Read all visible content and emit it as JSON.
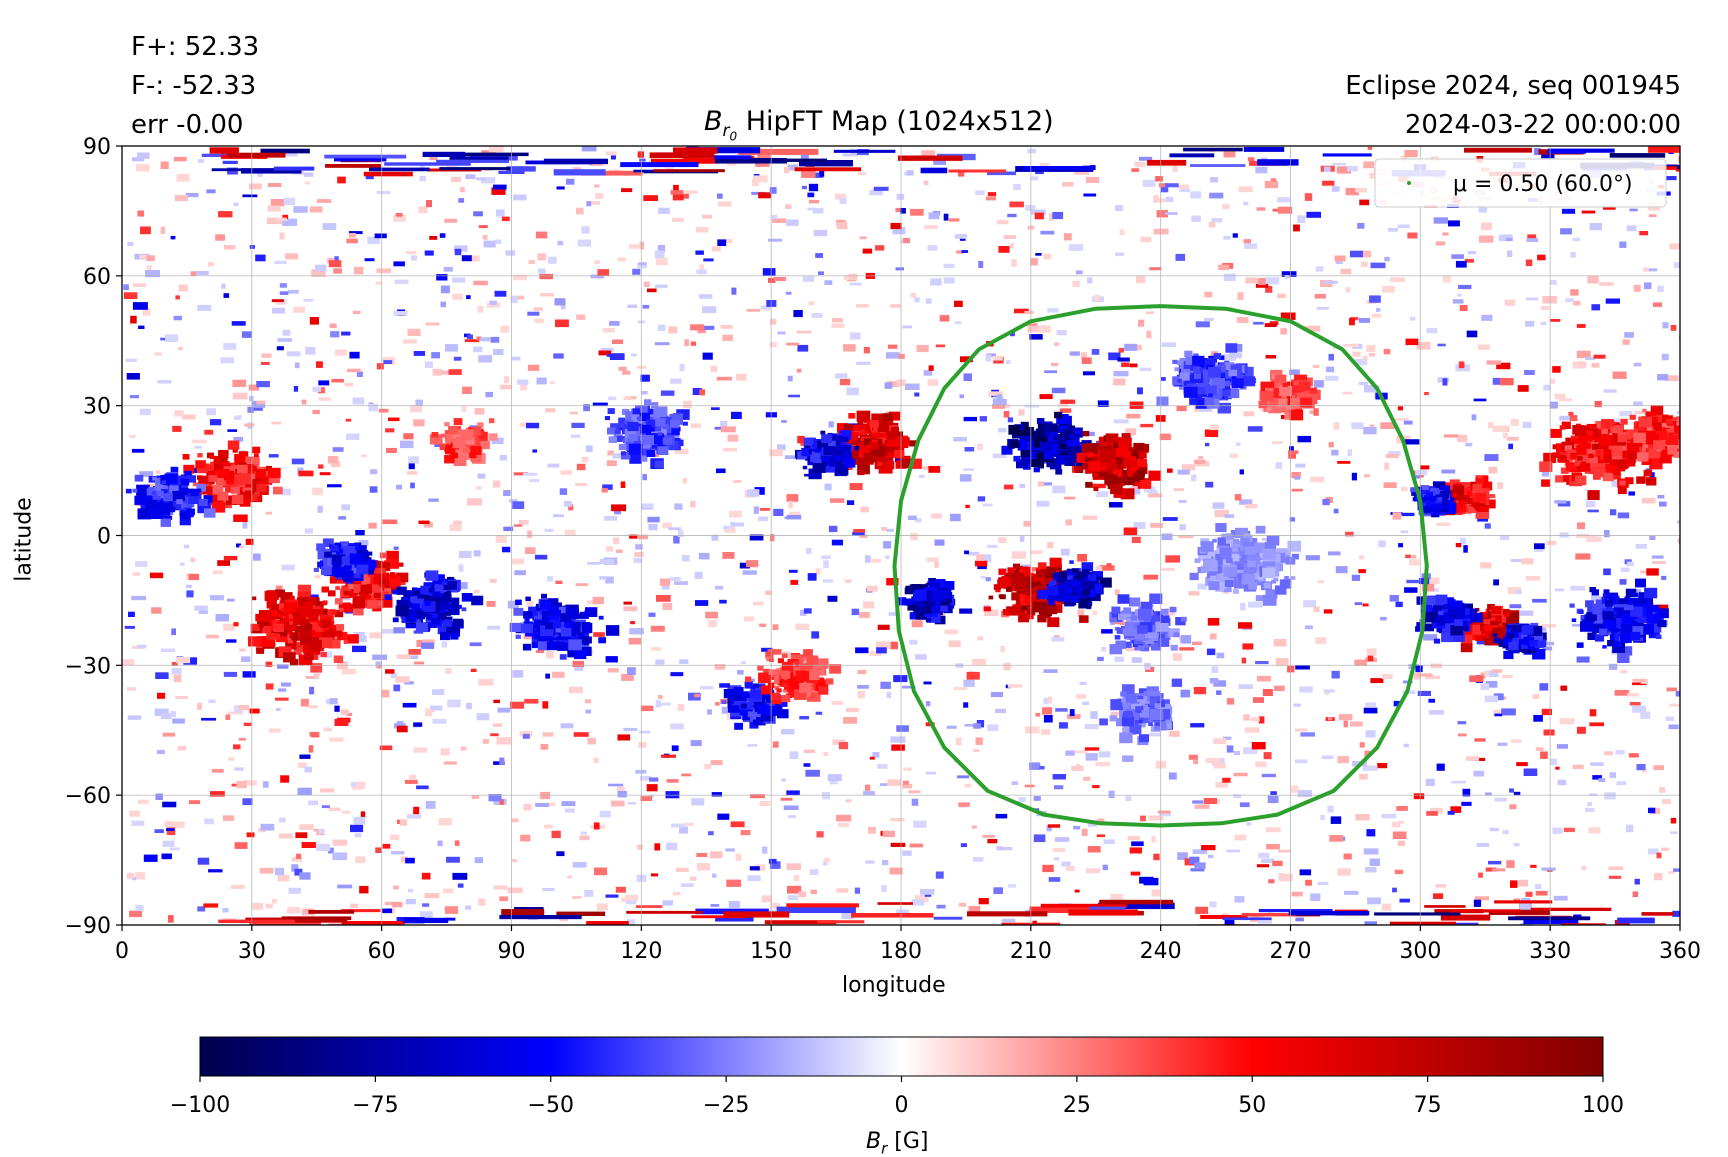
{
  "header": {
    "flux_pos": "F+: 52.33",
    "flux_neg": "F-: -52.33",
    "error": "err -0.00",
    "source": "Eclipse 2024, seq 001945",
    "date": "2024-03-22 00:00:00"
  },
  "chart_data": {
    "type": "heatmap",
    "title_prefix": "B",
    "title_sub": "r",
    "title_subsub": "0",
    "title_rest": " HipFT Map (1024x512)",
    "xlabel": "longitude",
    "ylabel": "latitude",
    "xlim": [
      0,
      360
    ],
    "ylim": [
      -90,
      90
    ],
    "xticks": [
      0,
      30,
      60,
      90,
      120,
      150,
      180,
      210,
      240,
      270,
      300,
      330,
      360
    ],
    "yticks": [
      -90,
      -60,
      -30,
      0,
      30,
      60,
      90
    ],
    "grid": true,
    "legend": {
      "placement": "upper right",
      "label": "μ = 0.50 (60.0°)",
      "color": "#2ca02c"
    },
    "mu_contour": {
      "mu": 0.5,
      "angle_deg": 60.0,
      "center_lon": 240,
      "center_lat": -7,
      "color": "#2ca02c",
      "points": [
        [
          240,
          53
        ],
        [
          255,
          52.4
        ],
        [
          270,
          49.5
        ],
        [
          282,
          43
        ],
        [
          290,
          34
        ],
        [
          296,
          22
        ],
        [
          300,
          8
        ],
        [
          301.5,
          -7
        ],
        [
          300.5,
          -22
        ],
        [
          297,
          -36
        ],
        [
          290,
          -49
        ],
        [
          280,
          -59
        ],
        [
          267,
          -64.5
        ],
        [
          254,
          -66.5
        ],
        [
          240,
          -67
        ],
        [
          226,
          -66.5
        ],
        [
          213,
          -64.5
        ],
        [
          200,
          -59
        ],
        [
          190,
          -49
        ],
        [
          183,
          -36
        ],
        [
          179.5,
          -22
        ],
        [
          178.5,
          -7
        ],
        [
          180,
          8
        ],
        [
          184,
          22
        ],
        [
          190,
          34
        ],
        [
          198,
          43
        ],
        [
          210,
          49.5
        ],
        [
          225,
          52.4
        ],
        [
          240,
          53
        ]
      ]
    },
    "active_regions": [
      {
        "lon": 213,
        "lat": 22,
        "sign": -1,
        "strength": 1.0,
        "r": 6
      },
      {
        "lon": 228,
        "lat": 18,
        "sign": 1,
        "strength": 1.0,
        "r": 6
      },
      {
        "lon": 210,
        "lat": -12,
        "sign": 1,
        "strength": 1.0,
        "r": 6
      },
      {
        "lon": 219,
        "lat": -11,
        "sign": -1,
        "strength": 0.9,
        "r": 4
      },
      {
        "lon": 185,
        "lat": -14,
        "sign": -1,
        "strength": 0.9,
        "r": 4
      },
      {
        "lon": 172,
        "lat": 22,
        "sign": 1,
        "strength": 0.9,
        "r": 6
      },
      {
        "lon": 162,
        "lat": 20,
        "sign": -1,
        "strength": 0.8,
        "r": 4
      },
      {
        "lon": 40,
        "lat": -20,
        "sign": 1,
        "strength": 0.8,
        "r": 8
      },
      {
        "lon": 55,
        "lat": -10,
        "sign": 1,
        "strength": 0.7,
        "r": 6
      },
      {
        "lon": 70,
        "lat": -15,
        "sign": -1,
        "strength": 0.8,
        "r": 6
      },
      {
        "lon": 50,
        "lat": -5,
        "sign": -1,
        "strength": 0.7,
        "r": 4
      },
      {
        "lon": 100,
        "lat": -20,
        "sign": -1,
        "strength": 0.7,
        "r": 6
      },
      {
        "lon": 25,
        "lat": 14,
        "sign": 1,
        "strength": 0.7,
        "r": 6
      },
      {
        "lon": 10,
        "lat": 10,
        "sign": -1,
        "strength": 0.6,
        "r": 5
      },
      {
        "lon": 145,
        "lat": -38,
        "sign": -1,
        "strength": 0.7,
        "r": 4
      },
      {
        "lon": 155,
        "lat": -32,
        "sign": 1,
        "strength": 0.5,
        "r": 5
      },
      {
        "lon": 310,
        "lat": 10,
        "sign": 1,
        "strength": 0.8,
        "r": 4
      },
      {
        "lon": 302,
        "lat": 9,
        "sign": -1,
        "strength": 0.7,
        "r": 3
      },
      {
        "lon": 315,
        "lat": -20,
        "sign": 1,
        "strength": 0.9,
        "r": 4
      },
      {
        "lon": 322,
        "lat": -23,
        "sign": -1,
        "strength": 0.8,
        "r": 3
      },
      {
        "lon": 305,
        "lat": -18,
        "sign": -1,
        "strength": 0.8,
        "r": 4
      },
      {
        "lon": 345,
        "lat": -18,
        "sign": -1,
        "strength": 0.7,
        "r": 7
      },
      {
        "lon": 340,
        "lat": 20,
        "sign": 1,
        "strength": 0.7,
        "r": 8
      },
      {
        "lon": 355,
        "lat": 24,
        "sign": 1,
        "strength": 0.6,
        "r": 5
      },
      {
        "lon": 250,
        "lat": 37,
        "sign": -1,
        "strength": 0.5,
        "r": 6
      },
      {
        "lon": 268,
        "lat": 33,
        "sign": 1,
        "strength": 0.5,
        "r": 4
      },
      {
        "lon": 235,
        "lat": -40,
        "sign": -1,
        "strength": 0.4,
        "r": 5
      },
      {
        "lon": 120,
        "lat": 25,
        "sign": -1,
        "strength": 0.5,
        "r": 6
      },
      {
        "lon": 78,
        "lat": 22,
        "sign": 1,
        "strength": 0.5,
        "r": 4
      },
      {
        "lon": 235,
        "lat": -20,
        "sign": -1,
        "strength": 0.4,
        "r": 5
      },
      {
        "lon": 258,
        "lat": -5,
        "sign": -1,
        "strength": 0.3,
        "r": 8
      }
    ],
    "colorbar": {
      "cmap": "seismic",
      "vmin": -100,
      "vmax": 100,
      "ticks": [
        -100,
        -75,
        -50,
        -25,
        0,
        25,
        50,
        75,
        100
      ],
      "tick_labels": [
        "−100",
        "−75",
        "−50",
        "−25",
        "0",
        "25",
        "50",
        "75",
        "100"
      ],
      "label_main": "B",
      "label_sub": "r",
      "label_unit": " [G]",
      "label": "B_r [G]"
    }
  }
}
